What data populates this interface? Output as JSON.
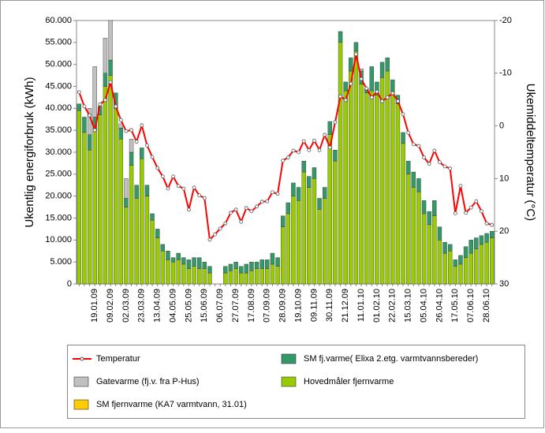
{
  "chart_data": {
    "type": "bar",
    "stacked": true,
    "y_label": "Ukentlig energiforbruk (kWh)",
    "y2_label": "Ukemiddeltemperatur (°C)",
    "categories": [
      null,
      null,
      null,
      "19.01.09",
      null,
      null,
      "09.02.09",
      null,
      null,
      "02.03.09",
      null,
      null,
      "23.03.09",
      null,
      null,
      "13.04.09",
      null,
      null,
      "04.05.09",
      null,
      null,
      "25.05.09",
      null,
      null,
      "15.06.09",
      null,
      null,
      "06.07.09",
      null,
      null,
      "27.07.09",
      null,
      null,
      "17.08.09",
      null,
      null,
      "07.09.09",
      null,
      null,
      "28.09.09",
      null,
      null,
      "19.10.09",
      null,
      null,
      "09.11.09",
      null,
      null,
      "30.11.09",
      null,
      null,
      "21.12.09",
      null,
      null,
      "11.01.10",
      null,
      null,
      "01.02.10",
      null,
      null,
      "22.02.10",
      null,
      null,
      "15.03.10",
      null,
      null,
      "05.04.10",
      null,
      null,
      "26.04.10",
      null,
      null,
      "17.05.10",
      null,
      null,
      "07.06.10",
      null,
      null,
      "28.06.10",
      null
    ],
    "ylim": [
      0,
      60000
    ],
    "yticks": [
      0,
      {
        "value": 5000,
        "label": "5.000"
      },
      {
        "value": 10000,
        "label": "10.000"
      },
      {
        "value": 15000,
        "label": "15.000"
      },
      {
        "value": 20000,
        "label": "20.000"
      },
      {
        "value": 25000,
        "label": "25.000"
      },
      {
        "value": 30000,
        "label": "30.000"
      },
      {
        "value": 35000,
        "label": "35.000"
      },
      {
        "value": 40000,
        "label": "40.000"
      },
      {
        "value": 45000,
        "label": "45.000"
      },
      {
        "value": 50000,
        "label": "50.000"
      },
      {
        "value": 55000,
        "label": "55.000"
      },
      {
        "value": 60000,
        "label": "60.000"
      }
    ],
    "y2lim": [
      30,
      -20
    ],
    "y2ticks": [
      -20,
      -10,
      0,
      10,
      20,
      30
    ],
    "series": [
      {
        "name": "Temperatur",
        "type": "line",
        "axis": "y2",
        "color": "#ff0000",
        "values": [
          -6.4,
          -3.7,
          -2,
          0.8,
          -4.1,
          -4.9,
          -8.3,
          -3.7,
          -1.1,
          1,
          0.8,
          3,
          -0.1,
          3.7,
          5.9,
          8,
          9.6,
          11.9,
          9.6,
          11.4,
          11.9,
          15.9,
          11.7,
          13.2,
          13.7,
          21.6,
          20.6,
          19.5,
          18.5,
          16.5,
          15.9,
          18.2,
          15.6,
          16.2,
          15.3,
          14.4,
          14.3,
          12.6,
          12.9,
          6.6,
          6,
          4.7,
          5,
          2.9,
          4.6,
          2.8,
          4.6,
          1.7,
          4.1,
          -0.7,
          -5.6,
          -4.9,
          -8,
          -13.6,
          -8.9,
          -7.1,
          -5.4,
          -6.5,
          -4.7,
          -5.4,
          -6.2,
          -4.7,
          -2.2,
          1.3,
          3.5,
          3.8,
          6,
          7.2,
          4.7,
          6.9,
          7.7,
          8.1,
          16.6,
          11.4,
          16.5,
          15.5,
          14.3,
          16.2,
          18.5,
          18.8
        ]
      },
      {
        "name": "SM fj.varme( Elixa 2.etg. varmtvannsbereder)",
        "type": "bar",
        "color": "#339966",
        "stack": 2,
        "values": [
          1500,
          3500,
          3500,
          3000,
          2000,
          3000,
          3500,
          3500,
          2500,
          2000,
          3000,
          3000,
          2500,
          2500,
          1500,
          2000,
          1500,
          2000,
          1000,
          1500,
          1500,
          2000,
          2000,
          2500,
          1500,
          1500,
          0,
          0,
          1500,
          1500,
          1500,
          1500,
          2000,
          2000,
          1500,
          2000,
          2000,
          2500,
          2000,
          2500,
          2500,
          3000,
          3000,
          2500,
          2500,
          2500,
          2500,
          2500,
          3000,
          2500,
          2500,
          2000,
          3000,
          2000,
          3000,
          1000,
          5500,
          3000,
          3500,
          3000,
          2500,
          2000,
          2500,
          3000,
          3500,
          3000,
          3000,
          3000,
          3500,
          3000,
          2500,
          1500,
          1500,
          2000,
          2500,
          3000,
          2500,
          2000,
          2000,
          1500
        ]
      },
      {
        "name": "Gatevarme (fj.v. fra P-Hus)",
        "type": "bar",
        "color": "#c0c0c0",
        "stack": 3,
        "values": [
          0,
          0,
          6000,
          11500,
          0,
          8000,
          9000,
          0,
          1000,
          4500,
          3000,
          0,
          0,
          0,
          0,
          0,
          0,
          0,
          0,
          0,
          0,
          0,
          0,
          0,
          0,
          0,
          0,
          0,
          0,
          0,
          0,
          0,
          0,
          0,
          0,
          0,
          0,
          0,
          0,
          0,
          0,
          0,
          0,
          0,
          0,
          0,
          0,
          0,
          0,
          0,
          0,
          0,
          0,
          0,
          500,
          0,
          0,
          0,
          0,
          0,
          0,
          0,
          0,
          0,
          0,
          0,
          0,
          0,
          0,
          0,
          0,
          0,
          0,
          0,
          0,
          0,
          0,
          0,
          0,
          0
        ]
      },
      {
        "name": "Hovedmåler fjernvarme",
        "type": "bar",
        "color": "#99cc00",
        "stack": 0,
        "values": [
          39500,
          34500,
          30500,
          35000,
          38500,
          45000,
          47500,
          40000,
          33000,
          17500,
          27000,
          19500,
          28500,
          20000,
          14500,
          10500,
          7500,
          5500,
          5000,
          5500,
          4500,
          3500,
          4000,
          3500,
          3500,
          2500,
          0,
          0,
          2500,
          3000,
          3500,
          2500,
          2500,
          3000,
          3500,
          3500,
          3500,
          4500,
          4000,
          13000,
          16000,
          20000,
          19000,
          25500,
          22000,
          24000,
          17000,
          19500,
          34000,
          28000,
          55000,
          44000,
          48500,
          53000,
          45500,
          43500,
          44000,
          43000,
          47000,
          48500,
          44000,
          41000,
          32000,
          25000,
          22000,
          21000,
          16000,
          13500,
          15500,
          10000,
          7000,
          7500,
          4000,
          4500,
          6000,
          7000,
          8000,
          9000,
          9500,
          10500
        ]
      },
      {
        "name": "SM fjernvarme (KA7 varmtvann, 31.01)",
        "type": "bar",
        "color": "#ffcc00",
        "stack": 1,
        "values": [
          0,
          0,
          0,
          0,
          0,
          0,
          0,
          0,
          0,
          0,
          0,
          0,
          0,
          0,
          0,
          0,
          0,
          0,
          0,
          0,
          0,
          0,
          0,
          0,
          0,
          0,
          0,
          0,
          0,
          0,
          0,
          0,
          0,
          0,
          0,
          0,
          0,
          0,
          0,
          0,
          0,
          0,
          0,
          0,
          0,
          0,
          0,
          0,
          0,
          0,
          0,
          0,
          0,
          0,
          0,
          0,
          0,
          0,
          0,
          0,
          0,
          0,
          0,
          0,
          0,
          0,
          0,
          0,
          0,
          0,
          0,
          0,
          0,
          0,
          0,
          0,
          0,
          0,
          0,
          0
        ]
      }
    ]
  }
}
